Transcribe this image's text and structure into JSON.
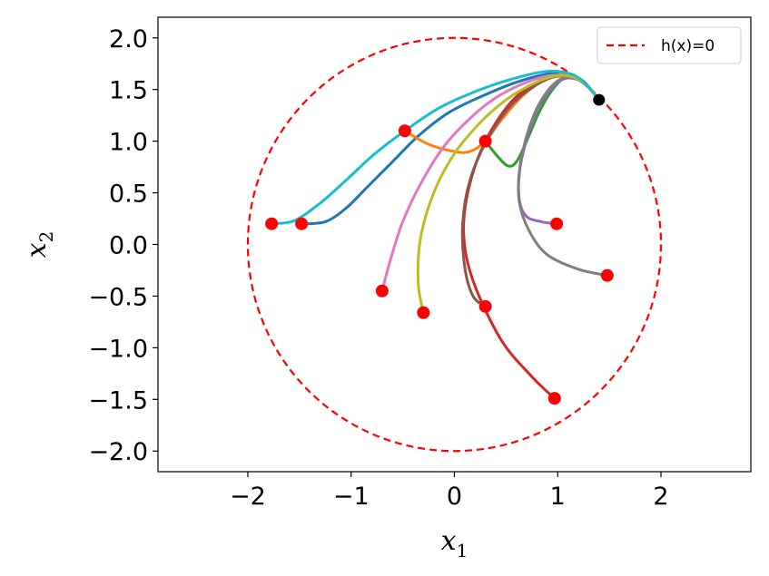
{
  "chart_data": {
    "type": "line",
    "title": "",
    "xlabel": "x",
    "xlabel_sub": "1",
    "ylabel": "x",
    "ylabel_sub": "2",
    "xlim": [
      -2.87,
      2.87
    ],
    "ylim": [
      -2.2,
      2.2
    ],
    "xticks": [
      -2,
      -1,
      0,
      1,
      2
    ],
    "yticks": [
      -2.0,
      -1.5,
      -1.0,
      -0.5,
      0.0,
      0.5,
      1.0,
      1.5,
      2.0
    ],
    "xtick_labels": [
      "−2",
      "−1",
      "0",
      "1",
      "2"
    ],
    "ytick_labels": [
      "−2.0",
      "−1.5",
      "−1.0",
      "−0.5",
      "0.0",
      "0.5",
      "1.0",
      "1.5",
      "2.0"
    ],
    "grid": false,
    "legend": {
      "position": "top-right",
      "entries": [
        {
          "label": "h(x)=0",
          "color": "#ff0000",
          "style": "dashed"
        }
      ]
    },
    "boundary": {
      "type": "circle",
      "center": [
        0,
        0
      ],
      "radius": 2,
      "color": "#ff0000",
      "style": "dashed"
    },
    "goal_point": {
      "x": 1.4,
      "y": 1.4,
      "color": "#000000"
    },
    "series": [
      {
        "color": "#1f77b4",
        "points": [
          [
            -1.48,
            0.2
          ],
          [
            -1.25,
            0.22
          ],
          [
            -1.05,
            0.35
          ],
          [
            -0.85,
            0.55
          ],
          [
            -0.6,
            0.8
          ],
          [
            -0.35,
            1.05
          ],
          [
            -0.05,
            1.28
          ],
          [
            0.3,
            1.45
          ],
          [
            0.6,
            1.57
          ],
          [
            0.9,
            1.65
          ],
          [
            1.1,
            1.65
          ],
          [
            1.25,
            1.58
          ],
          [
            1.4,
            1.4
          ]
        ]
      },
      {
        "color": "#ff7f0e",
        "points": [
          [
            -0.48,
            1.1
          ],
          [
            -0.25,
            0.97
          ],
          [
            0.0,
            0.9
          ],
          [
            0.15,
            0.9
          ],
          [
            0.3,
            1.0
          ],
          [
            0.45,
            1.2
          ],
          [
            0.65,
            1.43
          ],
          [
            0.85,
            1.58
          ],
          [
            1.05,
            1.65
          ],
          [
            1.2,
            1.6
          ],
          [
            1.32,
            1.5
          ],
          [
            1.4,
            1.4
          ]
        ]
      },
      {
        "color": "#2ca02c",
        "points": [
          [
            0.3,
            1.0
          ],
          [
            0.42,
            0.85
          ],
          [
            0.52,
            0.76
          ],
          [
            0.6,
            0.8
          ],
          [
            0.7,
            1.0
          ],
          [
            0.82,
            1.28
          ],
          [
            0.95,
            1.5
          ],
          [
            1.08,
            1.62
          ],
          [
            1.2,
            1.6
          ],
          [
            1.32,
            1.5
          ],
          [
            1.4,
            1.4
          ]
        ]
      },
      {
        "color": "#d62728",
        "points": [
          [
            0.97,
            -1.49
          ],
          [
            0.75,
            -1.28
          ],
          [
            0.45,
            -0.92
          ],
          [
            0.18,
            -0.35
          ],
          [
            0.09,
            0.1
          ],
          [
            0.14,
            0.55
          ],
          [
            0.3,
            1.0
          ],
          [
            0.55,
            1.38
          ],
          [
            0.8,
            1.57
          ],
          [
            1.0,
            1.63
          ],
          [
            1.15,
            1.62
          ],
          [
            1.3,
            1.52
          ],
          [
            1.4,
            1.4
          ]
        ]
      },
      {
        "color": "#9467bd",
        "points": [
          [
            0.99,
            0.2
          ],
          [
            0.84,
            0.22
          ],
          [
            0.7,
            0.27
          ],
          [
            0.63,
            0.42
          ],
          [
            0.63,
            0.7
          ],
          [
            0.7,
            1.02
          ],
          [
            0.8,
            1.3
          ],
          [
            0.93,
            1.5
          ],
          [
            1.05,
            1.6
          ],
          [
            1.18,
            1.6
          ],
          [
            1.3,
            1.52
          ],
          [
            1.4,
            1.4
          ]
        ]
      },
      {
        "color": "#8c564b",
        "points": [
          [
            0.3,
            -0.6
          ],
          [
            0.18,
            -0.5
          ],
          [
            0.1,
            -0.22
          ],
          [
            0.08,
            0.2
          ],
          [
            0.15,
            0.62
          ],
          [
            0.32,
            1.02
          ],
          [
            0.55,
            1.35
          ],
          [
            0.8,
            1.55
          ],
          [
            1.0,
            1.63
          ],
          [
            1.15,
            1.62
          ],
          [
            1.3,
            1.52
          ],
          [
            1.4,
            1.4
          ]
        ]
      },
      {
        "color": "#e377c2",
        "points": [
          [
            -0.7,
            -0.45
          ],
          [
            -0.62,
            -0.15
          ],
          [
            -0.5,
            0.22
          ],
          [
            -0.32,
            0.6
          ],
          [
            -0.1,
            0.95
          ],
          [
            0.15,
            1.22
          ],
          [
            0.4,
            1.42
          ],
          [
            0.65,
            1.55
          ],
          [
            0.9,
            1.63
          ],
          [
            1.1,
            1.63
          ],
          [
            1.25,
            1.57
          ],
          [
            1.4,
            1.4
          ]
        ]
      },
      {
        "color": "#7f7f7f",
        "points": [
          [
            1.48,
            -0.3
          ],
          [
            1.2,
            -0.24
          ],
          [
            0.9,
            -0.1
          ],
          [
            0.73,
            0.12
          ],
          [
            0.63,
            0.4
          ],
          [
            0.63,
            0.72
          ],
          [
            0.7,
            1.05
          ],
          [
            0.8,
            1.32
          ],
          [
            0.93,
            1.52
          ],
          [
            1.07,
            1.62
          ],
          [
            1.2,
            1.6
          ],
          [
            1.32,
            1.5
          ],
          [
            1.4,
            1.4
          ]
        ]
      },
      {
        "color": "#bcbd22",
        "points": [
          [
            -0.3,
            -0.66
          ],
          [
            -0.35,
            -0.38
          ],
          [
            -0.33,
            0.05
          ],
          [
            -0.2,
            0.5
          ],
          [
            0.0,
            0.88
          ],
          [
            0.25,
            1.18
          ],
          [
            0.5,
            1.4
          ],
          [
            0.75,
            1.55
          ],
          [
            0.97,
            1.63
          ],
          [
            1.15,
            1.62
          ],
          [
            1.3,
            1.52
          ],
          [
            1.4,
            1.4
          ]
        ]
      },
      {
        "color": "#17becf",
        "points": [
          [
            -1.77,
            0.2
          ],
          [
            -1.55,
            0.23
          ],
          [
            -1.3,
            0.4
          ],
          [
            -1.05,
            0.62
          ],
          [
            -0.78,
            0.87
          ],
          [
            -0.48,
            1.1
          ],
          [
            -0.15,
            1.32
          ],
          [
            0.2,
            1.48
          ],
          [
            0.55,
            1.6
          ],
          [
            0.85,
            1.67
          ],
          [
            1.05,
            1.67
          ],
          [
            1.22,
            1.6
          ],
          [
            1.4,
            1.4
          ]
        ]
      }
    ],
    "start_points": [
      {
        "x": -1.77,
        "y": 0.2
      },
      {
        "x": -1.48,
        "y": 0.2
      },
      {
        "x": -0.48,
        "y": 1.1
      },
      {
        "x": 0.3,
        "y": 1.0
      },
      {
        "x": 0.99,
        "y": 0.2
      },
      {
        "x": 1.48,
        "y": -0.3
      },
      {
        "x": -0.7,
        "y": -0.45
      },
      {
        "x": -0.3,
        "y": -0.66
      },
      {
        "x": 0.3,
        "y": -0.6
      },
      {
        "x": 0.97,
        "y": -1.49
      }
    ],
    "start_color": "#ff0000"
  }
}
